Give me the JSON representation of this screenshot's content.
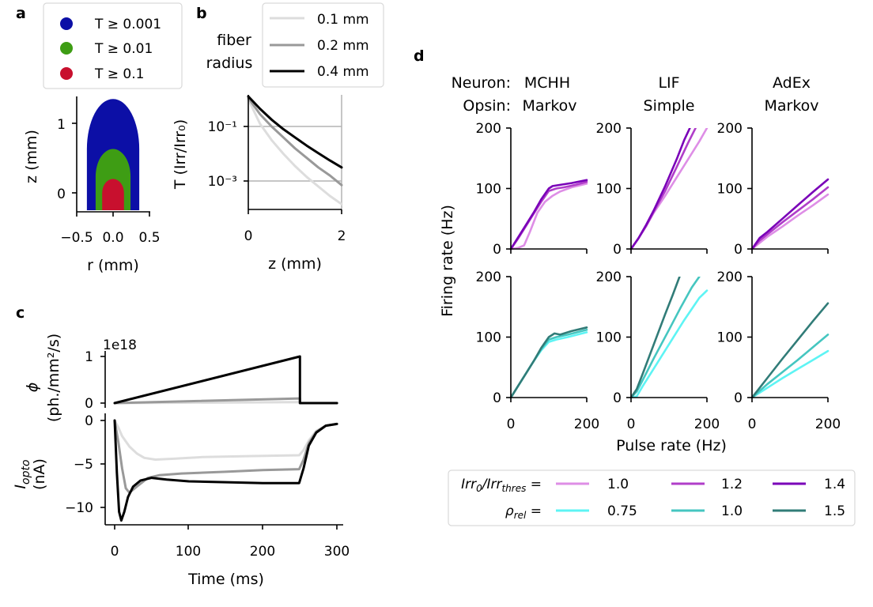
{
  "panels": {
    "a": {
      "letter": "a",
      "legend": [
        "T ≥ 0.001",
        "T ≥ 0.01",
        "T ≥ 0.1"
      ],
      "colors": [
        "#0c0fa6",
        "#3e9d14",
        "#c8102e"
      ],
      "xlabel": "r (mm)",
      "ylabel": "z (mm)",
      "xticks": [
        "−0.5",
        "0.0",
        "0.5"
      ],
      "yticks": [
        "0",
        "1"
      ]
    },
    "b": {
      "letter": "b",
      "legend_title_1": "fiber",
      "legend_title_2": "radius",
      "legend": [
        "0.1 mm",
        "0.2 mm",
        "0.4 mm"
      ],
      "colors": [
        "#dddddd",
        "#999999",
        "#000000"
      ],
      "xlabel": "z (mm)",
      "ylabel": "T (Irr/Irr₀)",
      "xticks": [
        "0",
        "2"
      ],
      "yticks": [
        "10⁻¹",
        "10⁻³"
      ]
    },
    "c": {
      "letter": "c",
      "offset_text": "1e18",
      "top_ylabel_1": "ϕ",
      "top_ylabel_2": "(ph./mm²/s)",
      "top_yticks": [
        "1",
        "0"
      ],
      "bottom_ylabel_1": "I",
      "bottom_ylabel_sub": "opto",
      "bottom_ylabel_2": "(nA)",
      "bottom_yticks": [
        "0",
        "−5",
        "−10"
      ],
      "xticks": [
        "0",
        "100",
        "200",
        "300"
      ],
      "xlabel": "Time (ms)"
    },
    "d": {
      "letter": "d",
      "neuron_label": "Neuron:",
      "opsin_label": "Opsin:",
      "columns": [
        {
          "neuron": "MCHH",
          "opsin": "Markov"
        },
        {
          "neuron": "LIF",
          "opsin": "Simple"
        },
        {
          "neuron": "AdEx",
          "opsin": "Markov"
        }
      ],
      "yticks": [
        "200",
        "100",
        "0"
      ],
      "xticks": [
        "0",
        "200"
      ],
      "ylabel": "Firing rate (Hz)",
      "xlabel": "Pulse rate (Hz)",
      "legend_row1_label": "Irr",
      "legend_row1_sub1": "0",
      "legend_row1_mid": "/Irr",
      "legend_row1_sub2": "thres",
      "legend_row1_eq": " =",
      "legend_row1_items": [
        "1.0",
        "1.2",
        "1.4"
      ],
      "legend_row1_colors": [
        "#de8ee6",
        "#b03ec9",
        "#7a00b8"
      ],
      "legend_row2_label": "ρ",
      "legend_row2_sub": "rel",
      "legend_row2_eq": " =",
      "legend_row2_items": [
        "0.75",
        "1.0",
        "1.5"
      ],
      "legend_row2_colors": [
        "#5ef4f4",
        "#45c6c0",
        "#317c78"
      ]
    }
  },
  "chart_data": [
    {
      "panel": "a",
      "type": "area",
      "xlabel": "r (mm)",
      "ylabel": "z (mm)",
      "xlim": [
        -0.5,
        0.5
      ],
      "ylim": [
        -0.25,
        1.35
      ],
      "series": [
        {
          "name": "T ≥ 0.001",
          "half_width": 0.36,
          "z_top": 1.35,
          "z_bottom": -0.25
        },
        {
          "name": "T ≥ 0.01",
          "half_width": 0.24,
          "z_top": 0.63,
          "z_bottom": -0.25
        },
        {
          "name": "T ≥ 0.1",
          "half_width": 0.15,
          "z_top": 0.2,
          "z_bottom": -0.25
        }
      ]
    },
    {
      "panel": "b",
      "type": "line",
      "xlabel": "z (mm)",
      "ylabel": "T (Irr/Irr0)",
      "xlim": [
        0,
        2
      ],
      "ylim_log10": [
        -4.1,
        0.6
      ],
      "hlines_log10": [
        -1,
        -3
      ],
      "series": [
        {
          "name": "0.1 mm",
          "x": [
            0,
            0.25,
            0.5,
            0.75,
            1.0,
            1.25,
            1.5,
            1.75,
            2.0
          ],
          "log10_y": [
            0.0,
            -0.9,
            -1.5,
            -2.0,
            -2.45,
            -2.85,
            -3.2,
            -3.55,
            -3.85
          ]
        },
        {
          "name": "0.2 mm",
          "x": [
            0,
            0.25,
            0.5,
            0.75,
            1.0,
            1.25,
            1.5,
            1.75,
            2.0
          ],
          "log10_y": [
            0.05,
            -0.55,
            -1.0,
            -1.4,
            -1.8,
            -2.15,
            -2.5,
            -2.8,
            -3.15
          ]
        },
        {
          "name": "0.4 mm",
          "x": [
            0,
            0.25,
            0.5,
            0.75,
            1.0,
            1.25,
            1.5,
            1.75,
            2.0
          ],
          "log10_y": [
            0.1,
            -0.35,
            -0.75,
            -1.1,
            -1.4,
            -1.7,
            -1.98,
            -2.25,
            -2.5
          ]
        }
      ]
    },
    {
      "panel": "c-top",
      "type": "line",
      "ylabel": "phi (ph./mm2/s)",
      "xlim": [
        -8,
        305
      ],
      "ylim": [
        -0.05,
        1.05
      ],
      "y_multiplier": "1e18",
      "series": [
        {
          "name": "0.4 mm",
          "x": [
            0,
            250,
            250,
            300
          ],
          "y": [
            0,
            1.0,
            0,
            0
          ]
        },
        {
          "name": "0.2 mm",
          "x": [
            0,
            250,
            250,
            300
          ],
          "y": [
            0,
            0.1,
            0,
            0
          ]
        },
        {
          "name": "0.1 mm",
          "x": [
            0,
            250,
            250,
            300
          ],
          "y": [
            0,
            0.02,
            0,
            0
          ]
        }
      ]
    },
    {
      "panel": "c-bottom",
      "type": "line",
      "xlabel": "Time (ms)",
      "ylabel": "I_opto (nA)",
      "xlim": [
        -8,
        305
      ],
      "ylim": [
        -12,
        0.5
      ],
      "series": [
        {
          "name": "0.1 mm",
          "x": [
            0,
            5,
            10,
            20,
            30,
            40,
            55,
            80,
            120,
            180,
            249,
            255,
            262,
            272,
            285,
            300
          ],
          "y": [
            0,
            -0.8,
            -1.8,
            -3.0,
            -3.8,
            -4.3,
            -4.5,
            -4.4,
            -4.2,
            -4.1,
            -4.0,
            -3.4,
            -2.3,
            -1.2,
            -0.6,
            -0.4
          ]
        },
        {
          "name": "0.2 mm",
          "x": [
            0,
            5,
            10,
            15,
            20,
            30,
            45,
            60,
            90,
            150,
            200,
            249,
            255,
            262,
            272,
            285,
            300
          ],
          "y": [
            0,
            -2.5,
            -5.5,
            -7.8,
            -8.3,
            -7.6,
            -6.6,
            -6.3,
            -6.1,
            -5.9,
            -5.7,
            -5.6,
            -4.5,
            -2.6,
            -1.3,
            -0.6,
            -0.4
          ]
        },
        {
          "name": "0.4 mm",
          "x": [
            0,
            3,
            6,
            9,
            13,
            18,
            25,
            35,
            50,
            70,
            100,
            150,
            200,
            249,
            255,
            262,
            272,
            285,
            300
          ],
          "y": [
            0,
            -6.0,
            -10.5,
            -11.5,
            -10.5,
            -8.8,
            -7.6,
            -6.9,
            -6.6,
            -6.8,
            -7.0,
            -7.1,
            -7.2,
            -7.2,
            -5.5,
            -2.9,
            -1.4,
            -0.6,
            -0.4
          ]
        }
      ]
    },
    {
      "panel": "d-MCHH-Markov-Irr",
      "type": "line",
      "xlim": [
        0,
        200
      ],
      "ylim": [
        0,
        200
      ],
      "series": [
        {
          "name": "1.0",
          "x": [
            0,
            20,
            35,
            50,
            70,
            90,
            110,
            130,
            160,
            200
          ],
          "y": [
            0,
            2,
            6,
            28,
            60,
            78,
            88,
            95,
            102,
            108
          ]
        },
        {
          "name": "1.2",
          "x": [
            0,
            20,
            40,
            60,
            80,
            100,
            120,
            140,
            170,
            200
          ],
          "y": [
            0,
            18,
            38,
            58,
            78,
            96,
            100,
            102,
            106,
            111
          ]
        },
        {
          "name": "1.4",
          "x": [
            0,
            20,
            40,
            60,
            80,
            100,
            110,
            130,
            160,
            200
          ],
          "y": [
            0,
            20,
            40,
            60,
            82,
            100,
            104,
            106,
            109,
            114
          ]
        }
      ]
    },
    {
      "panel": "d-LIF-Simple-Irr",
      "type": "line",
      "xlim": [
        0,
        200
      ],
      "ylim": [
        0,
        200
      ],
      "series": [
        {
          "name": "1.0",
          "x": [
            0,
            20,
            40,
            60,
            90,
            120,
            150,
            180,
            200
          ],
          "y": [
            0,
            18,
            38,
            60,
            88,
            118,
            148,
            178,
            200
          ]
        },
        {
          "name": "1.2",
          "x": [
            0,
            20,
            40,
            60,
            90,
            120,
            150,
            170
          ],
          "y": [
            0,
            18,
            38,
            62,
            96,
            135,
            175,
            200
          ]
        },
        {
          "name": "1.4",
          "x": [
            0,
            20,
            40,
            60,
            90,
            120,
            140,
            155
          ],
          "y": [
            0,
            18,
            40,
            64,
            104,
            148,
            180,
            200
          ]
        }
      ]
    },
    {
      "panel": "d-AdEx-Markov-Irr",
      "type": "line",
      "xlim": [
        0,
        200
      ],
      "ylim": [
        0,
        200
      ],
      "series": [
        {
          "name": "1.0",
          "x": [
            0,
            20,
            40,
            80,
            120,
            160,
            200
          ],
          "y": [
            0,
            10,
            20,
            37,
            55,
            72,
            90
          ]
        },
        {
          "name": "1.2",
          "x": [
            0,
            20,
            40,
            80,
            120,
            160,
            200
          ],
          "y": [
            0,
            14,
            24,
            44,
            63,
            82,
            102
          ]
        },
        {
          "name": "1.4",
          "x": [
            0,
            20,
            40,
            80,
            120,
            160,
            200
          ],
          "y": [
            0,
            18,
            28,
            50,
            72,
            94,
            115
          ]
        }
      ]
    },
    {
      "panel": "d-MCHH-Markov-rho",
      "type": "line",
      "xlim": [
        0,
        200
      ],
      "ylim": [
        0,
        200
      ],
      "series": [
        {
          "name": "0.75",
          "x": [
            0,
            20,
            40,
            60,
            80,
            100,
            120,
            150,
            200
          ],
          "y": [
            0,
            20,
            40,
            60,
            78,
            92,
            96,
            100,
            108
          ]
        },
        {
          "name": "1.0",
          "x": [
            0,
            20,
            40,
            60,
            80,
            100,
            120,
            150,
            200
          ],
          "y": [
            0,
            20,
            40,
            60,
            80,
            96,
            100,
            104,
            112
          ]
        },
        {
          "name": "1.5",
          "x": [
            0,
            20,
            40,
            60,
            80,
            100,
            115,
            130,
            160,
            200
          ],
          "y": [
            0,
            20,
            40,
            60,
            82,
            100,
            106,
            104,
            110,
            116
          ]
        }
      ]
    },
    {
      "panel": "d-LIF-Simple-rho",
      "type": "line",
      "xlim": [
        0,
        200
      ],
      "ylim": [
        0,
        200
      ],
      "series": [
        {
          "name": "0.75",
          "x": [
            0,
            15,
            30,
            60,
            100,
            140,
            180,
            200
          ],
          "y": [
            0,
            2,
            18,
            48,
            88,
            128,
            165,
            177
          ]
        },
        {
          "name": "1.0",
          "x": [
            0,
            15,
            30,
            60,
            100,
            130,
            160,
            180
          ],
          "y": [
            0,
            10,
            28,
            65,
            112,
            148,
            182,
            200
          ]
        },
        {
          "name": "1.5",
          "x": [
            0,
            15,
            30,
            60,
            90,
            110,
            128
          ],
          "y": [
            0,
            14,
            38,
            88,
            138,
            170,
            200
          ]
        }
      ]
    },
    {
      "panel": "d-AdEx-Markov-rho",
      "type": "line",
      "xlim": [
        0,
        200
      ],
      "ylim": [
        0,
        200
      ],
      "series": [
        {
          "name": "0.75",
          "x": [
            0,
            20,
            40,
            80,
            120,
            160,
            200
          ],
          "y": [
            0,
            8,
            16,
            32,
            47,
            62,
            77
          ]
        },
        {
          "name": "1.0",
          "x": [
            0,
            20,
            40,
            80,
            120,
            160,
            200
          ],
          "y": [
            0,
            11,
            22,
            42,
            62,
            83,
            104
          ]
        },
        {
          "name": "1.5",
          "x": [
            0,
            20,
            40,
            80,
            120,
            160,
            200
          ],
          "y": [
            0,
            16,
            32,
            64,
            95,
            126,
            156
          ]
        }
      ]
    }
  ]
}
